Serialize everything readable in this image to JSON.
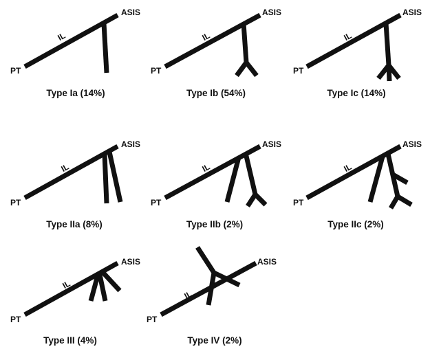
{
  "labels": {
    "posterior": "PT",
    "anterior": "ASIS",
    "ligament": "IL"
  },
  "panels": [
    {
      "id": "ia",
      "caption": "Type Ia (14%)"
    },
    {
      "id": "ib",
      "caption": "Type Ib (54%)"
    },
    {
      "id": "ic",
      "caption": "Type Ic (14%)"
    },
    {
      "id": "iia",
      "caption": "Type IIa (8%)"
    },
    {
      "id": "iib",
      "caption": "Type IIb (2%)"
    },
    {
      "id": "iic",
      "caption": "Type IIc (2%)"
    },
    {
      "id": "iii",
      "caption": "Type III (4%)"
    },
    {
      "id": "iv",
      "caption": "Type IV (2%)"
    }
  ],
  "colors": {
    "ink": "#111111",
    "background": "#ffffff"
  }
}
